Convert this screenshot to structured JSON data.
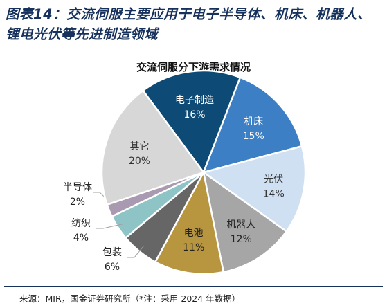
{
  "figure": {
    "title": "图表14：交流伺服主要应用于电子半导体、机床、机器人、锂电光伏等先进制造领域",
    "source": "来源：MIR，国金证券研究所（*注：采用 2024 年数据）"
  },
  "chart_data": {
    "type": "pie",
    "title": "交流伺服分下游需求情况",
    "unit": "%",
    "slices": [
      {
        "label": "电子制造",
        "value": 16,
        "display": "16%",
        "color": "#0d4a75",
        "label_color": "#ffffff",
        "label_pos": "inside"
      },
      {
        "label": "机床",
        "value": 15,
        "display": "15%",
        "color": "#3d7fc4",
        "label_color": "#ffffff",
        "label_pos": "inside"
      },
      {
        "label": "光伏",
        "value": 14,
        "display": "14%",
        "color": "#cfe0f3",
        "label_color": "#333333",
        "label_pos": "inside"
      },
      {
        "label": "机器人",
        "value": 12,
        "display": "12%",
        "color": "#a6a6a6",
        "label_color": "#222222",
        "label_pos": "inside"
      },
      {
        "label": "电池",
        "value": 11,
        "display": "11%",
        "color": "#b8953f",
        "label_color": "#222222",
        "label_pos": "inside"
      },
      {
        "label": "包装",
        "value": 6,
        "display": "6%",
        "color": "#666666",
        "label_color": "#222222",
        "label_pos": "outside"
      },
      {
        "label": "纺织",
        "value": 4,
        "display": "4%",
        "color": "#8fc4c6",
        "label_color": "#222222",
        "label_pos": "outside"
      },
      {
        "label": "半导体",
        "value": 2,
        "display": "2%",
        "color": "#a99ab2",
        "label_color": "#222222",
        "label_pos": "outside"
      },
      {
        "label": "其它",
        "value": 20,
        "display": "20%",
        "color": "#d7d7d7",
        "label_color": "#333333",
        "label_pos": "inside"
      }
    ]
  }
}
